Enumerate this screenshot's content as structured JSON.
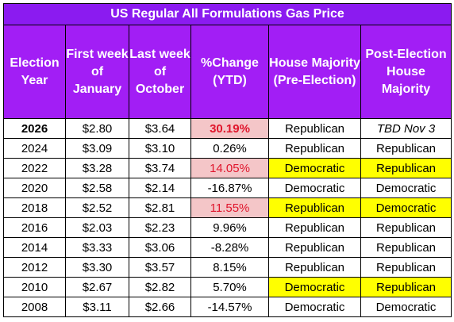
{
  "title": "US Regular All Formulations Gas Price",
  "headers": [
    "Election Year",
    "First week of January",
    "Last week of October",
    "%Change (YTD)",
    "House Majority (Pre-Election)",
    "Post-Election House Majority"
  ],
  "rows": [
    {
      "year": "2026",
      "jan": "$2.80",
      "oct": "$3.64",
      "change": "30.19%",
      "pre": "Republican",
      "post": "TBD Nov 3"
    },
    {
      "year": "2024",
      "jan": "$3.09",
      "oct": "$3.10",
      "change": "0.26%",
      "pre": "Republican",
      "post": "Republican"
    },
    {
      "year": "2022",
      "jan": "$3.28",
      "oct": "$3.74",
      "change": "14.05%",
      "pre": "Democratic",
      "post": "Republican"
    },
    {
      "year": "2020",
      "jan": "$2.58",
      "oct": "$2.14",
      "change": "-16.87%",
      "pre": "Democratic",
      "post": "Democratic"
    },
    {
      "year": "2018",
      "jan": "$2.52",
      "oct": "$2.81",
      "change": "11.55%",
      "pre": "Republican",
      "post": "Democratic"
    },
    {
      "year": "2016",
      "jan": "$2.03",
      "oct": "$2.23",
      "change": "9.96%",
      "pre": "Republican",
      "post": "Republican"
    },
    {
      "year": "2014",
      "jan": "$3.33",
      "oct": "$3.06",
      "change": "-8.28%",
      "pre": "Republican",
      "post": "Republican"
    },
    {
      "year": "2012",
      "jan": "$3.30",
      "oct": "$3.57",
      "change": "8.15%",
      "pre": "Republican",
      "post": "Republican"
    },
    {
      "year": "2010",
      "jan": "$2.67",
      "oct": "$2.82",
      "change": "5.70%",
      "pre": "Democratic",
      "post": "Republican"
    },
    {
      "year": "2008",
      "jan": "$3.11",
      "oct": "$2.66",
      "change": "-14.57%",
      "pre": "Democratic",
      "post": "Democratic"
    }
  ],
  "colors": {
    "header": "#A21EF5",
    "highlight_pink": "#F4C6C8",
    "highlight_yellow": "#FFFF00",
    "emphasis_red": "#E0152C"
  }
}
